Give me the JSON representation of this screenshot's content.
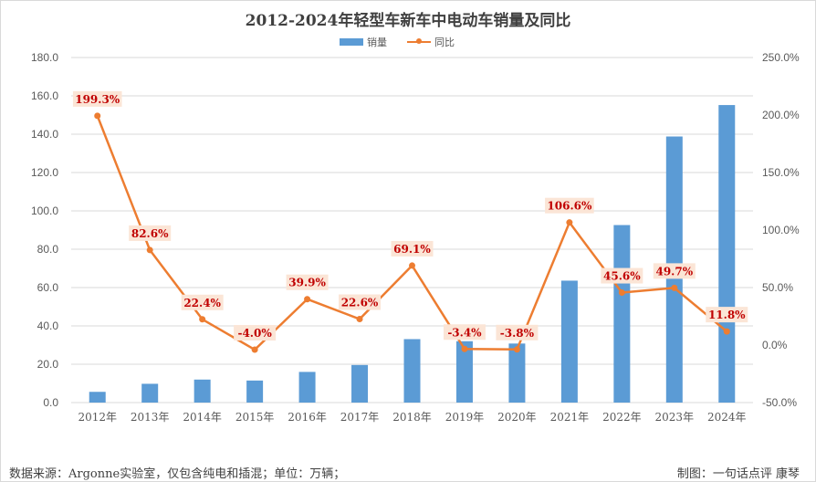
{
  "chart_data": {
    "type": "bar",
    "title": "2012-2024年轻型车新车中电动车销量及同比",
    "categories": [
      "2012年",
      "2013年",
      "2014年",
      "2015年",
      "2016年",
      "2017年",
      "2018年",
      "2019年",
      "2020年",
      "2021年",
      "2022年",
      "2023年",
      "2024年"
    ],
    "series": [
      {
        "name": "销量",
        "type": "bar",
        "axis": "left",
        "color": "#5b9bd5",
        "values": [
          5.6,
          9.8,
          12.0,
          11.5,
          16.0,
          19.6,
          33.1,
          32.0,
          30.8,
          63.6,
          92.6,
          138.8,
          155.2
        ]
      },
      {
        "name": "同比",
        "type": "line",
        "axis": "right",
        "color": "#ed7d31",
        "values": [
          199.3,
          82.6,
          22.4,
          -4.0,
          39.9,
          22.6,
          69.1,
          -3.4,
          -3.8,
          106.6,
          45.6,
          49.7,
          11.8
        ],
        "labels": [
          "199.3%",
          "82.6%",
          "22.4%",
          "-4.0%",
          "39.9%",
          "22.6%",
          "69.1%",
          "-3.4%",
          "-3.8%",
          "106.6%",
          "45.6%",
          "49.7%",
          "11.8%"
        ]
      }
    ],
    "left_axis": {
      "ylim": [
        0,
        180
      ],
      "ticks": [
        "0.0",
        "20.0",
        "40.0",
        "60.0",
        "80.0",
        "100.0",
        "120.0",
        "140.0",
        "160.0",
        "180.0"
      ]
    },
    "right_axis": {
      "ylim": [
        -50,
        250
      ],
      "ticks": [
        "-50.0%",
        "0.0%",
        "50.0%",
        "100.0%",
        "150.0%",
        "200.0%",
        "250.0%"
      ]
    },
    "grid": true,
    "legend": "top-center"
  },
  "footer": {
    "source": "数据来源：Argonne实验室，仅包含纯电和插混；单位：万辆；",
    "credit": "制图：一句话点评  康琴"
  },
  "colors": {
    "bar": "#5b9bd5",
    "line": "#ed7d31",
    "label_bg": "#fbe5d6",
    "label_text": "#c00000"
  }
}
